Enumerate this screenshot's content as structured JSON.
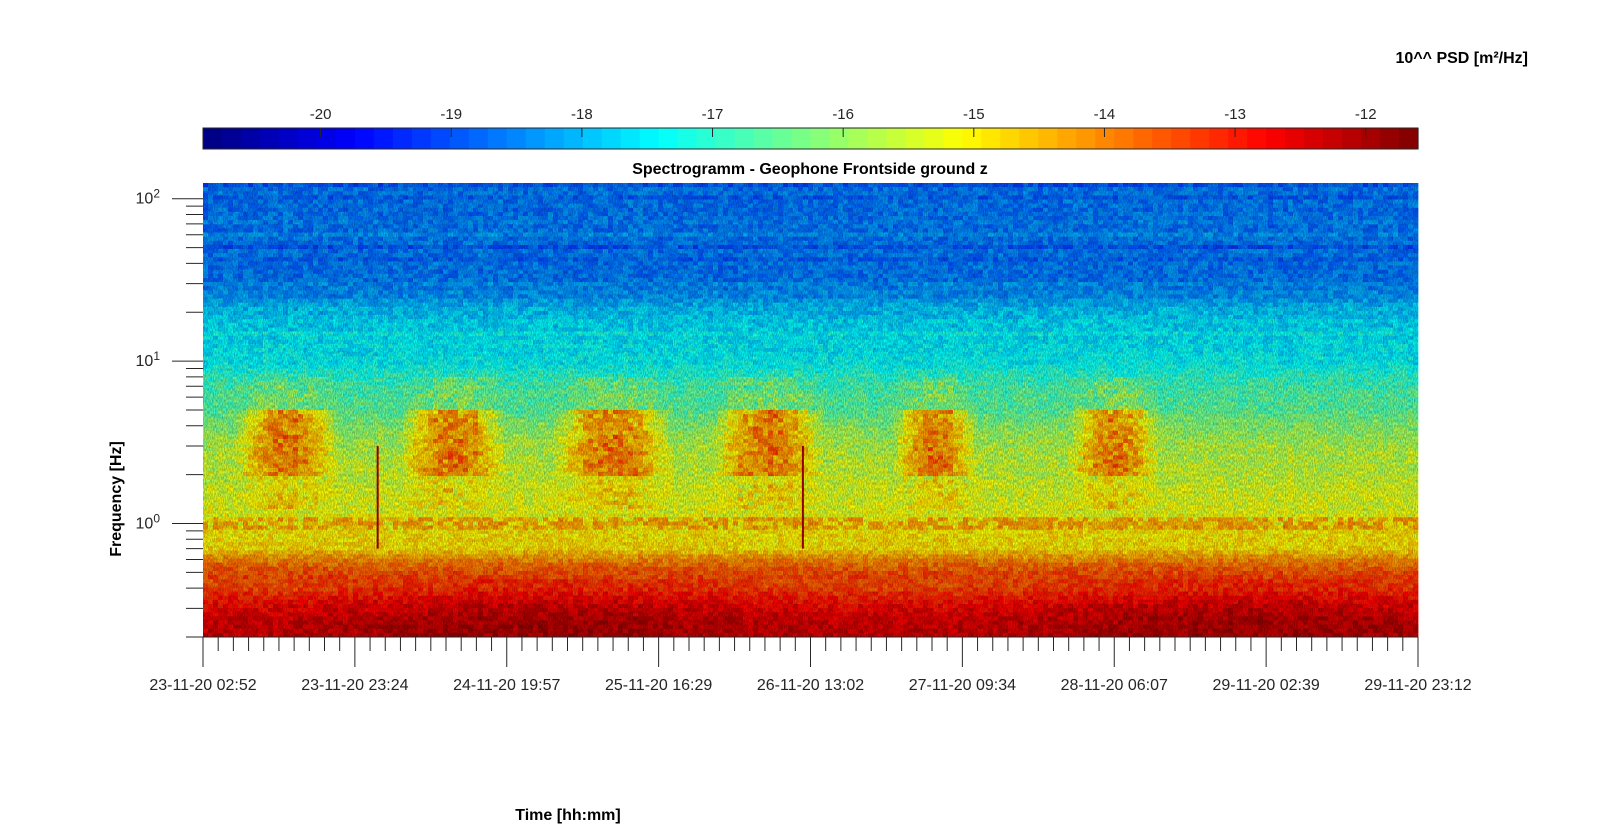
{
  "chart_data": {
    "type": "heatmap",
    "title": "Spectrogramm - Geophone Frontside ground z",
    "xlabel": "Time [hh:mm]",
    "ylabel": "Frequency [Hz]",
    "colorbar_label": "10^^ PSD [m²/Hz]",
    "colormap": "jet",
    "colorbar_position": "top",
    "colorbar_range": [
      -20.9,
      -11.6
    ],
    "colorbar_ticks": [
      -20,
      -19,
      -18,
      -17,
      -16,
      -15,
      -14,
      -13,
      -12
    ],
    "colorbar_tick_labels": [
      "-20",
      "-19",
      "-18",
      "-17",
      "-16",
      "-15",
      "-14",
      "-13",
      "-12"
    ],
    "y_scale": "log",
    "y_range_hz": [
      0.2,
      125
    ],
    "y_ticks": [
      1,
      10,
      100
    ],
    "y_tick_labels": [
      {
        "base": "10",
        "exp": "0"
      },
      {
        "base": "10",
        "exp": "1"
      },
      {
        "base": "10",
        "exp": "2"
      }
    ],
    "x_tick_labels": [
      "23-11-20 02:52",
      "23-11-20 23:24",
      "24-11-20 19:57",
      "25-11-20 16:29",
      "26-11-20 13:02",
      "27-11-20 09:34",
      "28-11-20 06:07",
      "29-11-20 02:39",
      "29-11-20 23:12"
    ],
    "grid": false,
    "frequency_bands": [
      {
        "band": "0.2-0.4 Hz",
        "log10_psd": -12.2
      },
      {
        "band": "0.4-0.7 Hz",
        "log10_psd": -13.3
      },
      {
        "band": "0.7-1.2 Hz",
        "log10_psd": -14.9
      },
      {
        "band": "1.2-2 Hz",
        "log10_psd": -15.3
      },
      {
        "band": "2-5 Hz",
        "log10_psd": -15.6
      },
      {
        "band": "5-10 Hz",
        "log10_psd": -16.6
      },
      {
        "band": "10-30 Hz",
        "log10_psd": -17.5
      },
      {
        "band": "30-125 Hz",
        "log10_psd": -18.6
      }
    ],
    "daytime_activity": {
      "band": "2-5 Hz",
      "peak_log10_psd": -13.5,
      "intervals_x_index": [
        [
          0.2,
          0.9
        ],
        [
          1.3,
          2.0
        ],
        [
          2.3,
          3.1
        ],
        [
          3.35,
          4.1
        ],
        [
          4.55,
          5.1
        ],
        [
          5.7,
          6.3
        ]
      ]
    },
    "line_1hz": {
      "frequency_hz": 1.0,
      "log10_psd": -14.2
    },
    "transients_x_index": [
      1.15,
      3.95
    ]
  }
}
